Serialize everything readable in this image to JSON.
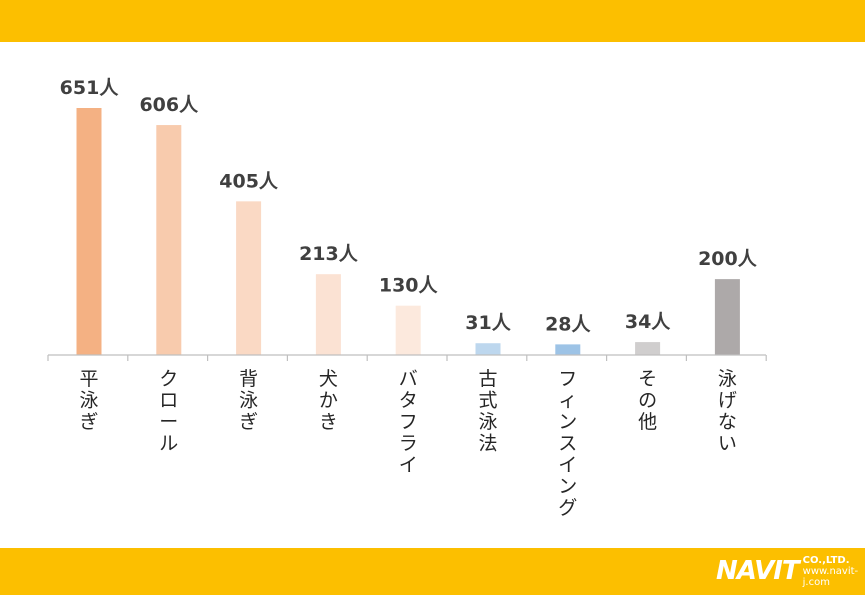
{
  "chart_data": {
    "type": "bar",
    "categories": [
      "平泳ぎ",
      "クロール",
      "背泳ぎ",
      "犬かき",
      "バタフライ",
      "古式泳法",
      "フィンスイング",
      "その他",
      "泳げない"
    ],
    "values": [
      651,
      606,
      405,
      213,
      130,
      31,
      28,
      34,
      200
    ],
    "value_labels": [
      "651人",
      "606人",
      "405人",
      "213人",
      "130人",
      "31人",
      "28人",
      "34人",
      "200人"
    ],
    "bar_colors": [
      "#F4B183",
      "#F8CBAD",
      "#FAD9C4",
      "#FBE2D3",
      "#FCE9DD",
      "#BDD7EE",
      "#9DC3E6",
      "#D0CECE",
      "#ADA9A9"
    ],
    "title": "",
    "xlabel": "",
    "ylabel": "",
    "ylim": [
      0,
      651
    ],
    "grid": false,
    "legend": "none"
  },
  "brand": {
    "band_color": "#FCBF00",
    "logo_main": "NAVIT",
    "logo_co": "CO.,LTD.",
    "logo_url": "www.navit-j.com"
  }
}
